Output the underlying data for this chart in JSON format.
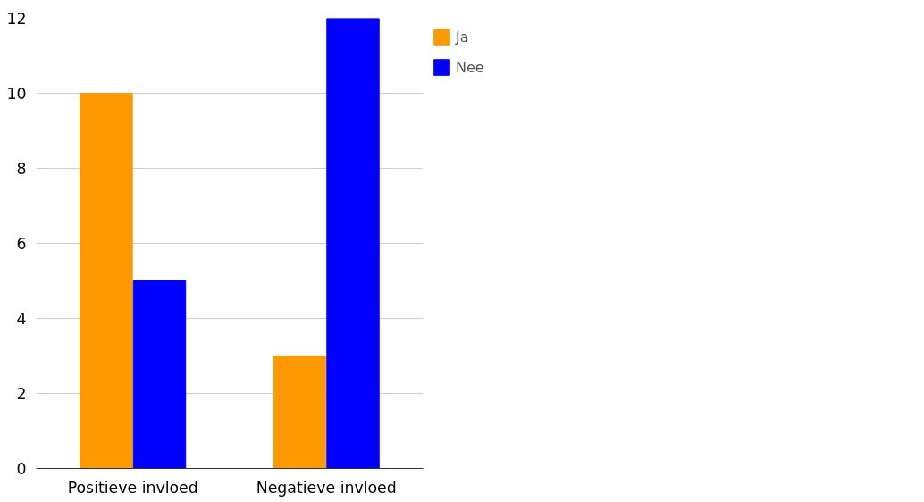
{
  "chart_data": {
    "type": "bar",
    "categories": [
      "Positieve invloed",
      "Negatieve invloed"
    ],
    "series": [
      {
        "name": "Ja",
        "color": "#ff9900",
        "values": [
          10,
          3
        ]
      },
      {
        "name": "Nee",
        "color": "#0000ff",
        "values": [
          5,
          12
        ]
      }
    ],
    "ylim": [
      0,
      12
    ],
    "yticks": [
      0,
      2,
      4,
      6,
      8,
      10,
      12
    ],
    "grid": "y",
    "legend": "top right"
  }
}
